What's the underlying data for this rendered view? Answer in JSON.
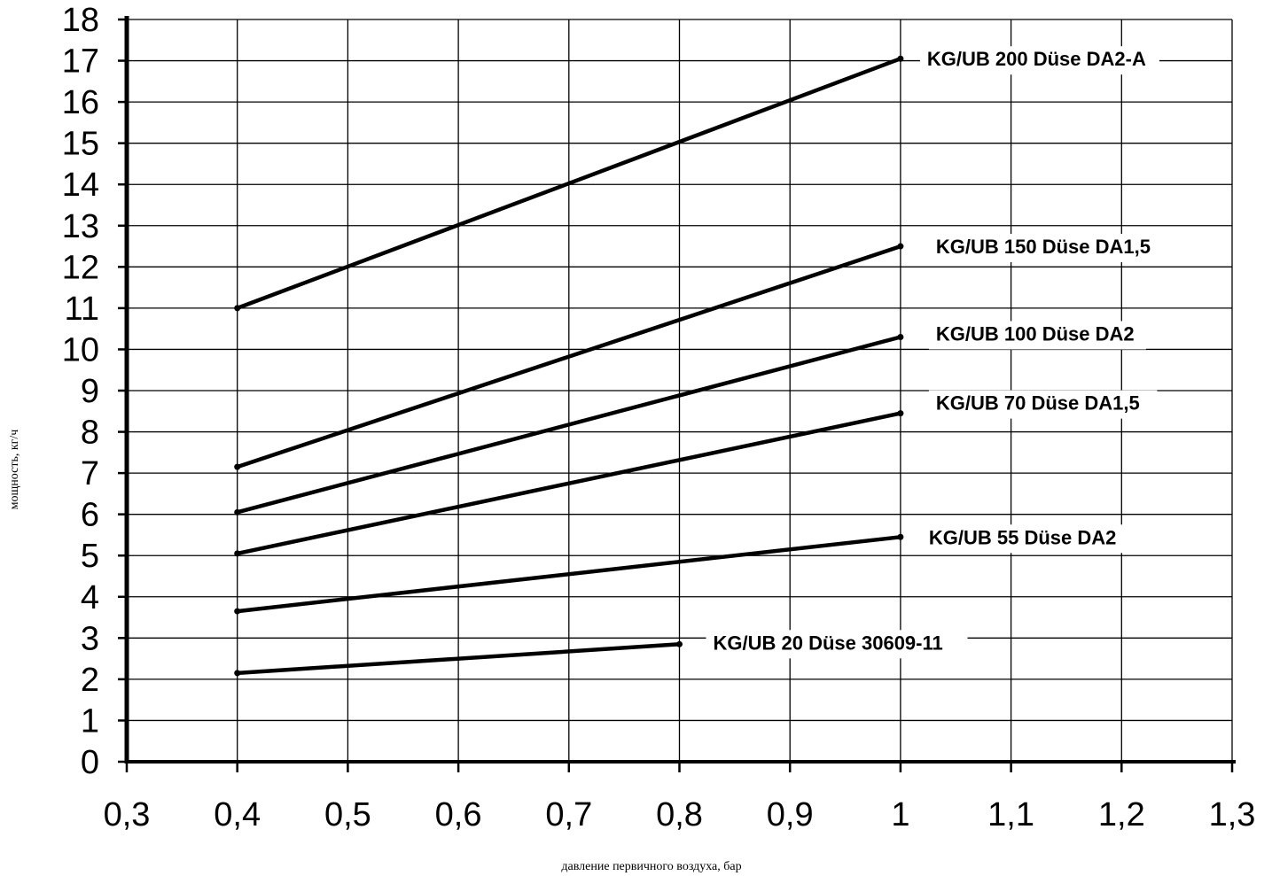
{
  "chart_data": {
    "type": "line",
    "title": "",
    "xlabel": "давление первичного воздуха, бар",
    "ylabel": "мощность, кг/ч",
    "xlim": [
      0.3,
      1.3
    ],
    "ylim": [
      0,
      18
    ],
    "x_ticks": [
      "0,3",
      "0,4",
      "0,5",
      "0,6",
      "0,7",
      "0,8",
      "0,9",
      "1",
      "1,1",
      "1,2",
      "1,3"
    ],
    "y_ticks": [
      "0",
      "1",
      "2",
      "3",
      "4",
      "5",
      "6",
      "7",
      "8",
      "9",
      "10",
      "11",
      "12",
      "13",
      "14",
      "15",
      "16",
      "17",
      "18"
    ],
    "grid": true,
    "colors": {
      "line": "#000000",
      "grid": "#000000",
      "background": "#ffffff"
    },
    "series": [
      {
        "name": "KG/UB 200 Düse DA2-A",
        "x": [
          0.4,
          1.0
        ],
        "y": [
          11.0,
          17.05
        ]
      },
      {
        "name": "KG/UB 150 Düse DA1,5",
        "x": [
          0.4,
          1.0
        ],
        "y": [
          7.15,
          12.5
        ]
      },
      {
        "name": "KG/UB 100 Düse DA2",
        "x": [
          0.4,
          1.0
        ],
        "y": [
          6.05,
          10.3
        ]
      },
      {
        "name": "KG/UB 70 Düse DA1,5",
        "x": [
          0.4,
          1.0
        ],
        "y": [
          5.05,
          8.45
        ]
      },
      {
        "name": "KG/UB 55 Düse DA2",
        "x": [
          0.4,
          1.0
        ],
        "y": [
          3.65,
          5.45
        ]
      },
      {
        "name": "KG/UB 20 Düse 30609-11",
        "x": [
          0.4,
          0.8
        ],
        "y": [
          2.15,
          2.85
        ]
      }
    ]
  }
}
